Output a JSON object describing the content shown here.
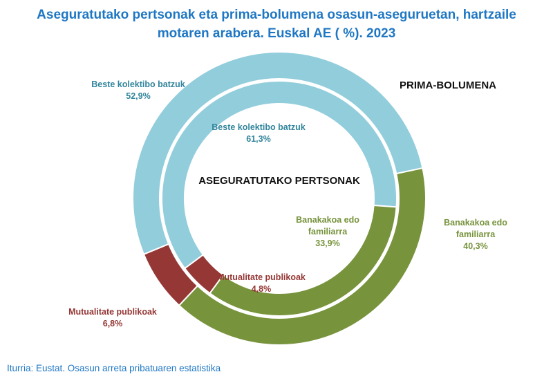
{
  "title_line1": "Aseguratutako pertsonak eta prima-bolumena osasun-aseguruetan, hartzaile",
  "title_line2": "motaren arabera. Euskal AE ( %). 2023",
  "source": "Iturria: Eustat. Osasun arreta pribatuaren estatistika",
  "colors": {
    "beste": "#92cddc",
    "banakakoa": "#77933c",
    "mutualitate": "#953735",
    "beste_text": "#31859c",
    "banakakoa_text": "#77933c",
    "mutualitate_text": "#953735"
  },
  "chart_data": [
    {
      "type": "pie",
      "ring": "outer",
      "ring_title": "PRIMA-BOLUMENA",
      "categories": [
        "Beste kolektibo batzuk",
        "Banakakoa edo familiarra",
        "Mutualitate publikoak"
      ],
      "values": [
        52.9,
        40.3,
        6.8
      ],
      "value_labels": [
        "52,9%",
        "40,3%",
        "6,8%"
      ],
      "label_lines": [
        [
          "Beste kolektibo batzuk",
          "52,9%"
        ],
        [
          "Banakakoa edo",
          "familiarra",
          "40,3%"
        ],
        [
          "Mutualitate publikoak",
          "6,8%"
        ]
      ]
    },
    {
      "type": "pie",
      "ring": "inner",
      "ring_title": "ASEGURATUTAKO PERTSONAK",
      "categories": [
        "Beste kolektibo batzuk",
        "Banakakoa edo familiarra",
        "Mutualitate publikoak"
      ],
      "values": [
        61.3,
        33.9,
        4.8
      ],
      "value_labels": [
        "61,3%",
        "33,9%",
        "4,8%"
      ],
      "label_lines": [
        [
          "Beste kolektibo batzuk",
          "61,3%"
        ],
        [
          "Banakakoa edo",
          "familiarra",
          "33,9%"
        ],
        [
          "Mutualitate publikoak",
          "4,8%"
        ]
      ]
    }
  ]
}
